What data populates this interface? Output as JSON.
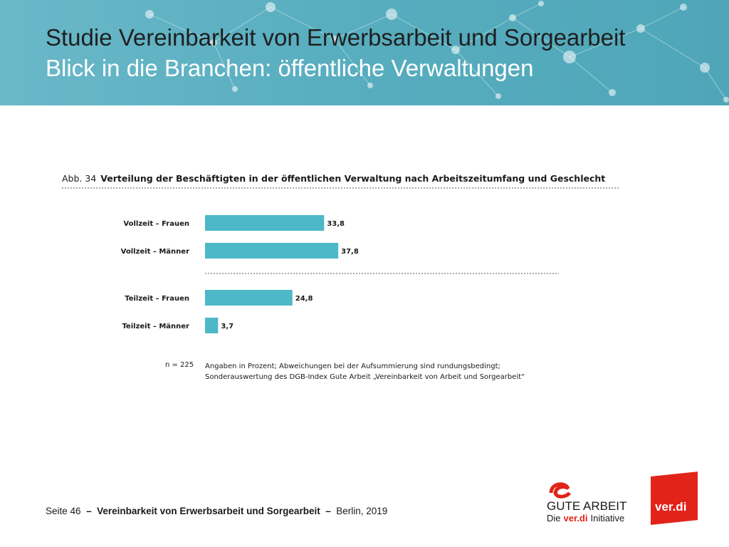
{
  "header": {
    "title_line1": "Studie Vereinbarkeit von Erwerbsarbeit und Sorgearbeit",
    "title_line2": "Blick in die Branchen: öffentliche Verwaltungen"
  },
  "figure": {
    "number": "Abb. 34",
    "title": "Verteilung der Beschäftigten in der öffentlichen Verwaltung nach Arbeitszeitumfang und Geschlecht"
  },
  "chart_data": {
    "type": "bar",
    "orientation": "horizontal",
    "categories": [
      "Vollzeit – Frauen",
      "Vollzeit – Männer",
      "Teilzeit – Frauen",
      "Teilzeit – Männer"
    ],
    "values": [
      33.8,
      37.8,
      24.8,
      3.7
    ],
    "value_labels": [
      "33,8",
      "37,8",
      "24,8",
      "3,7"
    ],
    "groups": [
      [
        "Vollzeit – Frauen",
        "Vollzeit – Männer"
      ],
      [
        "Teilzeit – Frauen",
        "Teilzeit – Männer"
      ]
    ],
    "bar_color": "#4db8c7",
    "xlim": [
      0,
      100
    ],
    "grid": false,
    "legend": "none"
  },
  "notes": {
    "n": "n = 225",
    "line1": "Angaben in Prozent; Abweichungen bei der Aufsummierung sind rundungsbedingt;",
    "line2": "Sonderauswertung des DGB-Index Gute Arbeit „Vereinbarkeit von Arbeit und Sorgearbeit“"
  },
  "footer": {
    "page": "Seite 46",
    "sep1": "–",
    "study": "Vereinbarkeit von Erwerbsarbeit und Sorgearbeit",
    "sep2": "–",
    "place_year": "Berlin, 2019"
  },
  "logos": {
    "gute_arbeit": {
      "line1": "GUTE ARBEIT",
      "line2_prefix": "Die",
      "line2_brand": "ver.di",
      "line2_suffix": "Initiative"
    },
    "verdi": "ver.di"
  },
  "colors": {
    "header_bg": "#58aebf",
    "accent_red": "#e2231a",
    "bar": "#4db8c7"
  }
}
